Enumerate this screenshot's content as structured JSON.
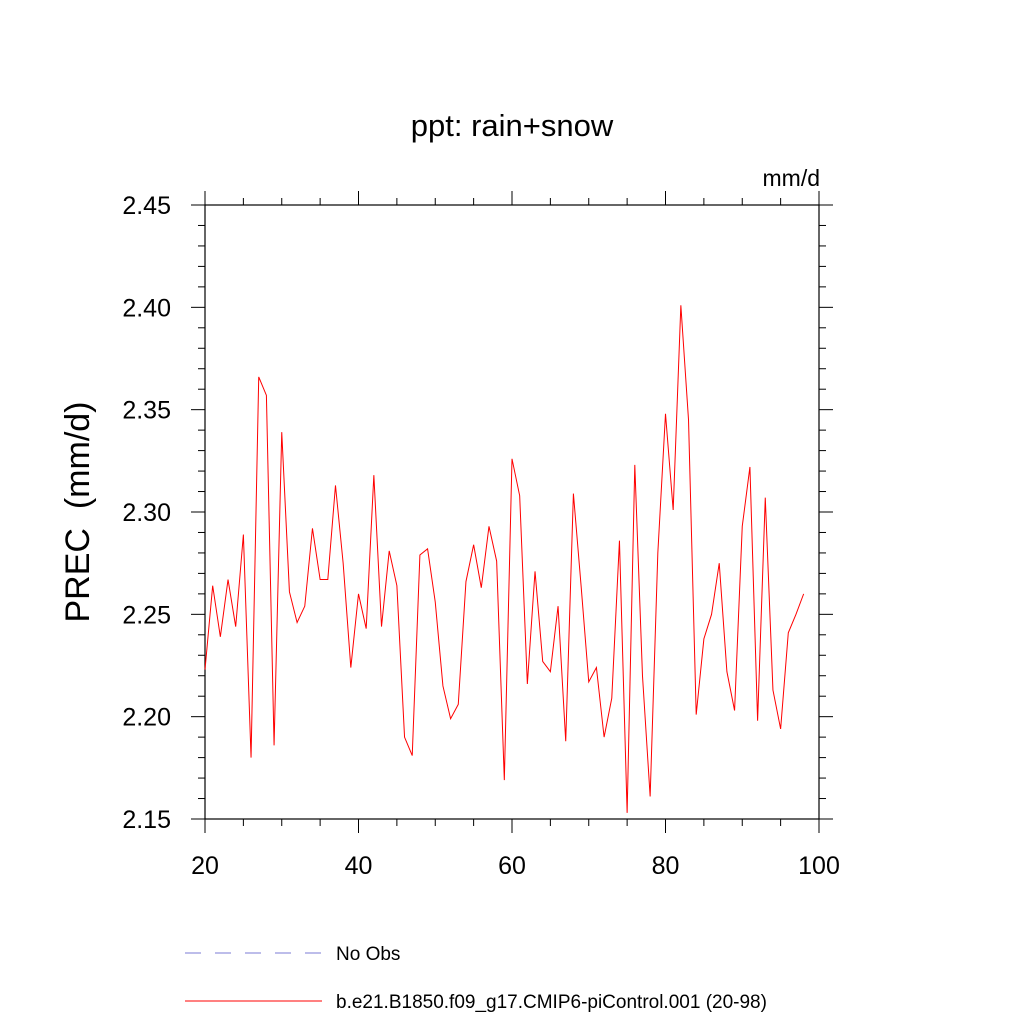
{
  "chart_data": {
    "type": "line",
    "title": "ppt: rain+snow",
    "units_label": "mm/d",
    "ylabel": "PREC  (mm/d)",
    "xlabel": "",
    "xlim": [
      20,
      100
    ],
    "ylim": [
      2.15,
      2.45
    ],
    "x_ticks": [
      20,
      40,
      60,
      80,
      100
    ],
    "x_tick_labels": [
      "20",
      "40",
      "60",
      "80",
      "100"
    ],
    "y_ticks": [
      2.15,
      2.2,
      2.25,
      2.3,
      2.35,
      2.4,
      2.45
    ],
    "y_tick_labels": [
      "2.15",
      "2.20",
      "2.25",
      "2.30",
      "2.35",
      "2.40",
      "2.45"
    ],
    "grid": false,
    "legend_position": "bottom",
    "series": [
      {
        "name": "b.e21.B1850.f09_g17.CMIP6-piControl.001 (20-98)",
        "color": "#ff0000",
        "style": "solid",
        "x": [
          20,
          21,
          22,
          23,
          24,
          25,
          26,
          27,
          28,
          29,
          30,
          31,
          32,
          33,
          34,
          35,
          36,
          37,
          38,
          39,
          40,
          41,
          42,
          43,
          44,
          45,
          46,
          47,
          48,
          49,
          50,
          51,
          52,
          53,
          54,
          55,
          56,
          57,
          58,
          59,
          60,
          61,
          62,
          63,
          64,
          65,
          66,
          67,
          68,
          69,
          70,
          71,
          72,
          73,
          74,
          75,
          76,
          77,
          78,
          79,
          80,
          81,
          82,
          83,
          84,
          85,
          86,
          87,
          88,
          89,
          90,
          91,
          92,
          93,
          94,
          95,
          96,
          97,
          98
        ],
        "y": [
          2.223,
          2.264,
          2.239,
          2.267,
          2.244,
          2.289,
          2.18,
          2.366,
          2.357,
          2.186,
          2.339,
          2.261,
          2.246,
          2.254,
          2.292,
          2.267,
          2.267,
          2.313,
          2.275,
          2.224,
          2.26,
          2.243,
          2.318,
          2.244,
          2.281,
          2.264,
          2.19,
          2.181,
          2.279,
          2.282,
          2.256,
          2.215,
          2.199,
          2.206,
          2.266,
          2.284,
          2.263,
          2.293,
          2.276,
          2.169,
          2.326,
          2.308,
          2.216,
          2.271,
          2.227,
          2.222,
          2.254,
          2.188,
          2.309,
          2.264,
          2.217,
          2.224,
          2.19,
          2.209,
          2.286,
          2.153,
          2.323,
          2.22,
          2.161,
          2.28,
          2.348,
          2.301,
          2.401,
          2.345,
          2.201,
          2.238,
          2.25,
          2.275,
          2.222,
          2.203,
          2.293,
          2.322,
          2.198,
          2.307,
          2.213,
          2.194,
          2.241,
          2.25,
          2.26
        ]
      },
      {
        "name": "No Obs",
        "color": "#7b7bd6",
        "style": "dashed",
        "x": [],
        "y": []
      }
    ]
  }
}
